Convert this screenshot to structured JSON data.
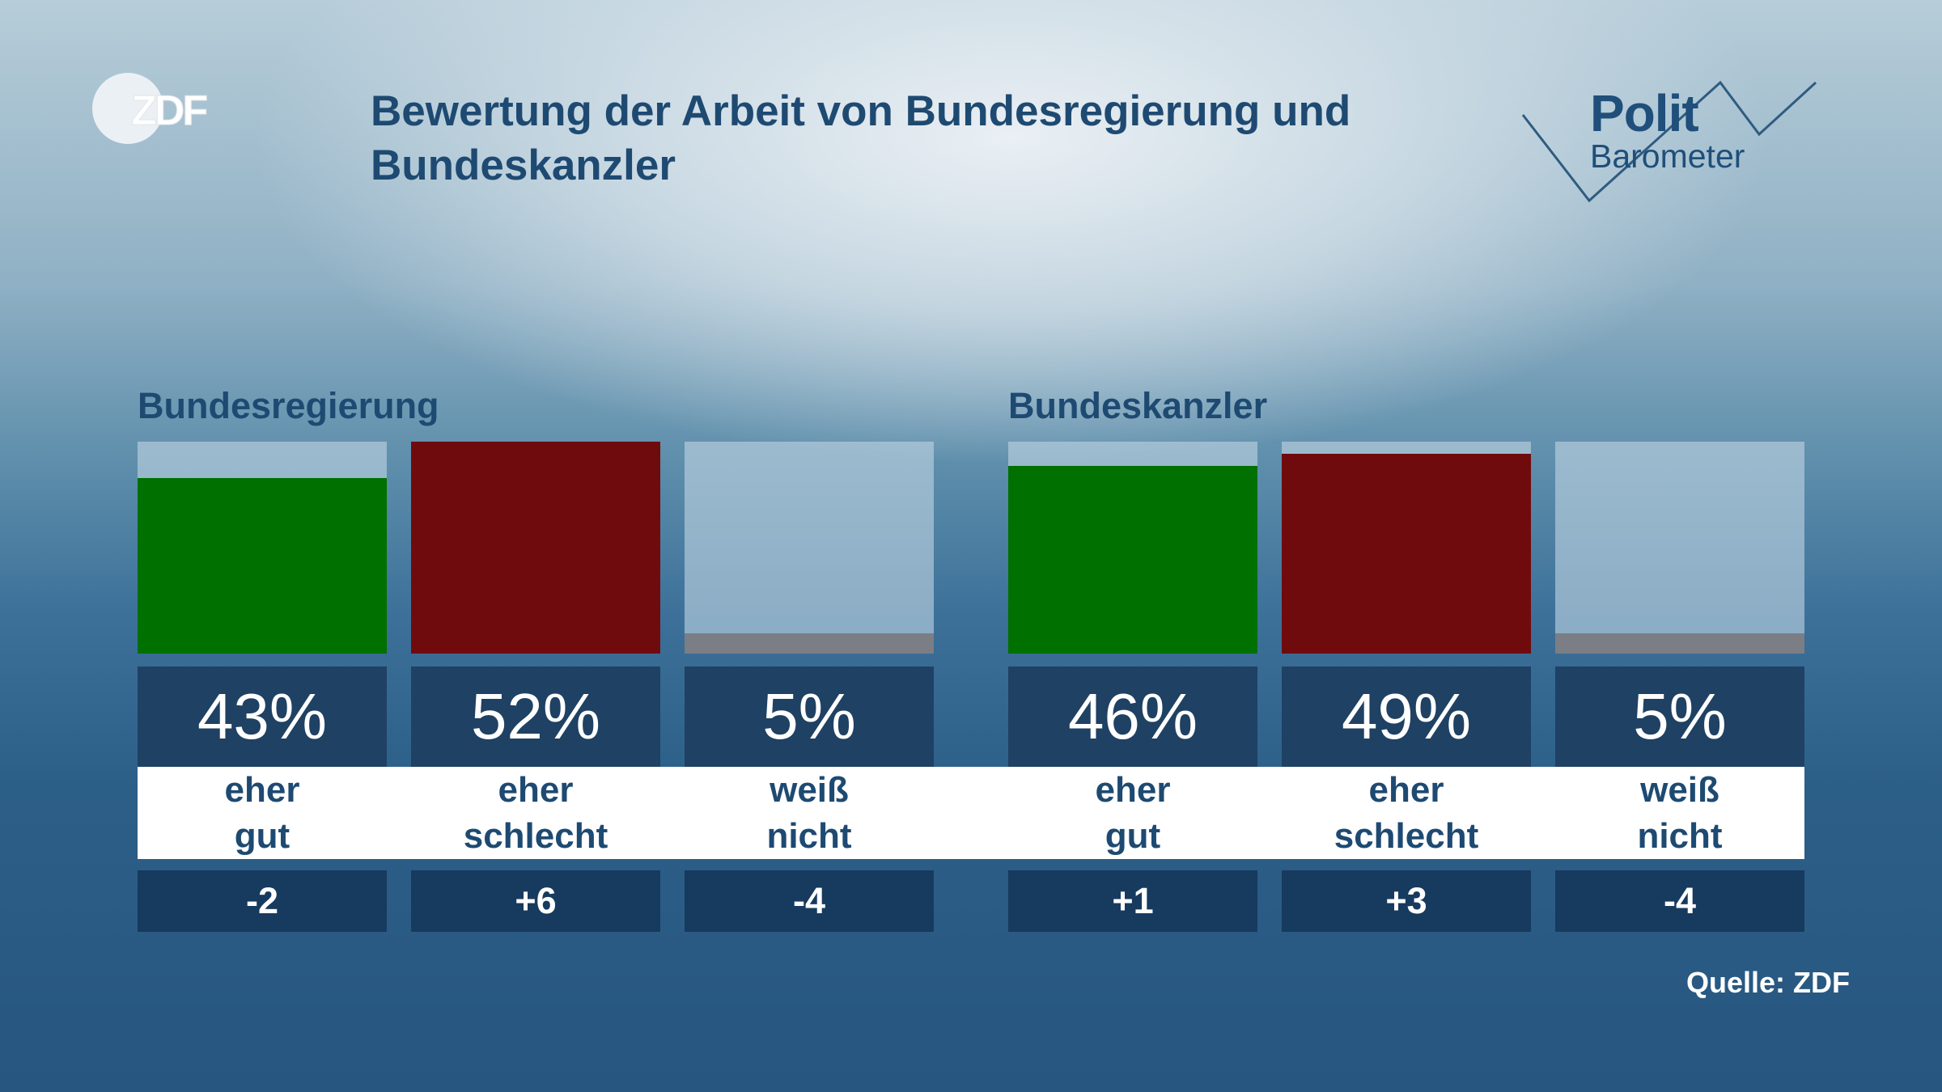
{
  "header": {
    "logo_text": "ZDF",
    "title": "Bewertung der Arbeit von Bundesregierung und Bundeskanzler",
    "brand_line1": "Polit",
    "brand_line2": "Barometer"
  },
  "chart_data": [
    {
      "type": "bar",
      "title": "Bundesregierung",
      "categories": [
        "eher gut",
        "eher schlecht",
        "weiß nicht"
      ],
      "category_lines": [
        [
          "eher",
          "gut"
        ],
        [
          "eher",
          "schlecht"
        ],
        [
          "weiß",
          "nicht"
        ]
      ],
      "values": [
        43,
        52,
        5
      ],
      "value_labels": [
        "43%",
        "52%",
        "5%"
      ],
      "changes": [
        "-2",
        "+6",
        "-4"
      ],
      "colors": [
        "#007000",
        "#700b0d",
        "#7b7e84"
      ],
      "ylim": [
        0,
        52
      ]
    },
    {
      "type": "bar",
      "title": "Bundeskanzler",
      "categories": [
        "eher gut",
        "eher schlecht",
        "weiß nicht"
      ],
      "category_lines": [
        [
          "eher",
          "gut"
        ],
        [
          "eher",
          "schlecht"
        ],
        [
          "weiß",
          "nicht"
        ]
      ],
      "values": [
        46,
        49,
        5
      ],
      "value_labels": [
        "46%",
        "49%",
        "5%"
      ],
      "changes": [
        "+1",
        "+3",
        "-4"
      ],
      "colors": [
        "#007000",
        "#700b0d",
        "#7b7e84"
      ],
      "ylim": [
        0,
        52
      ]
    }
  ],
  "footer": {
    "source": "Quelle: ZDF"
  },
  "colors": {
    "title": "#1e4a72",
    "value_box": "#1f4163",
    "change_box": "#173a5f"
  }
}
